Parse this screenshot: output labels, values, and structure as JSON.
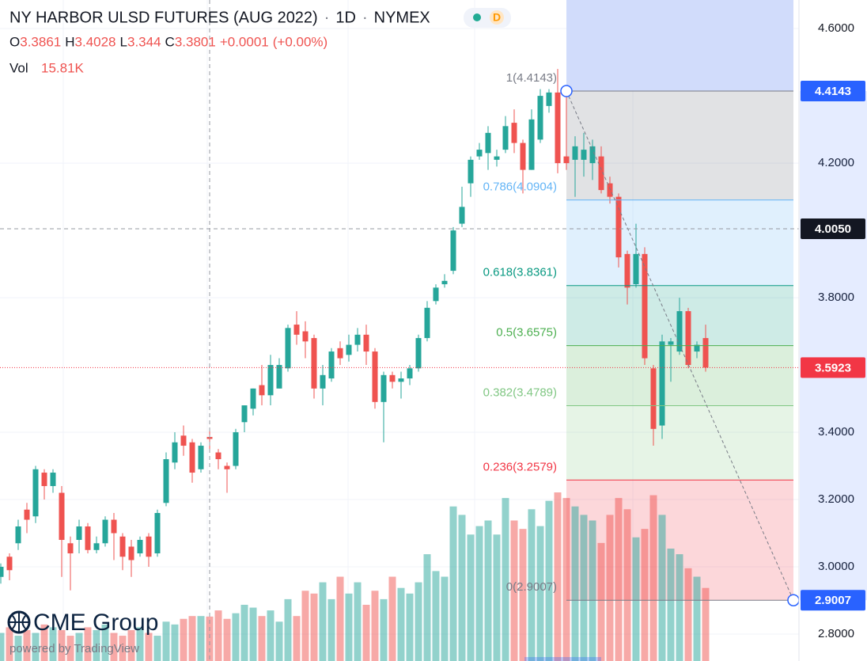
{
  "chart_data": {
    "type": "candlestick",
    "header": {
      "title": "NY HARBOR ULSD FUTURES (AUG 2022)",
      "interval": "1D",
      "exchange": "NYMEX",
      "badge": "D",
      "ohlc_keys": [
        "O",
        "H",
        "L",
        "C"
      ],
      "change": "+0.0001",
      "change_pct": "(+0.00%)",
      "vol_key": "Vol",
      "vol": "15.81K"
    },
    "up_color": "#26a69a",
    "down_color": "#ef5350",
    "ylim": [
      2.72,
      4.685
    ],
    "yticks": [
      {
        "value": 4.6,
        "label": "4.6000"
      },
      {
        "value": 4.2,
        "label": "4.2000"
      },
      {
        "value": 3.8,
        "label": "3.8000"
      },
      {
        "value": 3.4,
        "label": "3.4000"
      },
      {
        "value": 3.2,
        "label": "3.2000"
      },
      {
        "value": 3.0,
        "label": "3.0000"
      },
      {
        "value": 2.8,
        "label": "2.8000"
      }
    ],
    "grid": true,
    "open": [
      2.97,
      3.03,
      3.07,
      3.17,
      3.15,
      3.28,
      3.24,
      3.22,
      3.07,
      3.08,
      3.12,
      3.05,
      3.07,
      3.14,
      3.09,
      3.06,
      3.04,
      3.09,
      3.04,
      3.19,
      3.31,
      3.39,
      3.37,
      3.29,
      3.3861,
      3.34,
      3.3,
      3.3,
      3.43,
      3.47,
      3.54,
      3.51,
      3.53,
      3.59,
      3.72,
      3.7,
      3.68,
      3.53,
      3.56,
      3.65,
      3.63,
      3.66,
      3.69,
      3.64,
      3.49,
      3.57,
      3.55,
      3.56,
      3.59,
      3.68,
      3.79,
      3.84,
      3.88,
      4.02,
      4.14,
      4.22,
      4.23,
      4.21,
      4.24,
      4.32,
      4.26,
      4.18,
      4.27,
      4.37,
      4.41,
      4.22,
      4.21,
      4.21,
      4.2,
      4.22,
      4.14,
      4.1,
      3.93,
      3.84,
      3.93,
      3.59,
      3.42,
      3.66,
      3.64,
      3.76,
      3.64,
      3.68
    ],
    "high": [
      3.01,
      3.04,
      3.14,
      3.19,
      3.3,
      3.29,
      3.29,
      3.24,
      3.09,
      3.14,
      3.13,
      3.09,
      3.15,
      3.16,
      3.1,
      3.08,
      3.09,
      3.1,
      3.17,
      3.34,
      3.4,
      3.42,
      3.38,
      3.37,
      3.4028,
      3.35,
      3.31,
      3.41,
      3.48,
      3.53,
      3.6,
      3.63,
      3.62,
      3.72,
      3.76,
      3.73,
      3.69,
      3.6,
      3.65,
      3.67,
      3.69,
      3.71,
      3.72,
      3.65,
      3.58,
      3.58,
      3.58,
      3.6,
      3.69,
      3.79,
      3.84,
      3.87,
      4.01,
      4.13,
      4.22,
      4.26,
      4.31,
      4.24,
      4.34,
      4.36,
      4.27,
      4.36,
      4.42,
      4.42,
      4.48,
      4.4,
      4.28,
      4.29,
      4.27,
      4.25,
      4.16,
      4.11,
      3.94,
      4.02,
      3.95,
      3.6,
      3.69,
      3.68,
      3.8,
      3.77,
      3.67,
      3.72
    ],
    "low": [
      2.95,
      2.96,
      3.05,
      3.1,
      3.13,
      3.2,
      3.22,
      2.97,
      2.93,
      3.04,
      3.04,
      3.04,
      3.06,
      3.02,
      2.99,
      2.97,
      3.03,
      3.0,
      3.03,
      3.18,
      3.29,
      3.33,
      3.25,
      3.28,
      3.344,
      3.29,
      3.22,
      3.29,
      3.4,
      3.45,
      3.48,
      3.48,
      3.53,
      3.58,
      3.66,
      3.62,
      3.5,
      3.48,
      3.55,
      3.6,
      3.61,
      3.64,
      3.6,
      3.47,
      3.37,
      3.53,
      3.5,
      3.54,
      3.58,
      3.67,
      3.78,
      3.83,
      3.87,
      4.01,
      4.1,
      4.21,
      4.18,
      4.19,
      4.23,
      4.23,
      4.11,
      4.18,
      4.26,
      4.35,
      4.17,
      4.18,
      4.1,
      4.16,
      4.15,
      4.11,
      4.08,
      3.89,
      3.78,
      3.83,
      3.6,
      3.36,
      3.38,
      3.55,
      3.63,
      3.59,
      3.62,
      3.58
    ],
    "close": [
      3.0,
      2.99,
      3.12,
      3.14,
      3.29,
      3.24,
      3.28,
      3.08,
      3.04,
      3.12,
      3.05,
      3.07,
      3.14,
      3.1,
      3.03,
      3.02,
      3.08,
      3.03,
      3.16,
      3.32,
      3.37,
      3.36,
      3.28,
      3.36,
      3.3801,
      3.32,
      3.29,
      3.4,
      3.48,
      3.53,
      3.51,
      3.6,
      3.6,
      3.71,
      3.69,
      3.67,
      3.53,
      3.57,
      3.64,
      3.62,
      3.66,
      3.69,
      3.64,
      3.49,
      3.57,
      3.55,
      3.56,
      3.59,
      3.68,
      3.77,
      3.83,
      3.85,
      4.0,
      4.07,
      4.21,
      4.24,
      4.29,
      4.22,
      4.31,
      4.26,
      4.18,
      4.33,
      4.4,
      4.41,
      4.2,
      4.2,
      4.25,
      4.24,
      4.25,
      4.12,
      4.1,
      3.92,
      3.83,
      3.93,
      3.62,
      3.41,
      3.67,
      3.67,
      3.76,
      3.6,
      3.66,
      3.5923
    ],
    "volume": [
      10,
      12,
      9,
      11,
      10,
      13,
      12,
      11,
      9,
      10,
      12,
      11,
      13,
      10,
      9,
      11,
      12,
      10,
      9,
      14,
      13,
      15,
      16,
      16,
      15.81,
      18,
      15,
      17,
      20,
      19,
      16,
      18,
      14,
      22,
      16,
      25,
      24,
      28,
      22,
      30,
      24,
      28,
      20,
      25,
      22,
      30,
      26,
      24,
      28,
      38,
      32,
      30,
      55,
      52,
      45,
      48,
      50,
      45,
      58,
      50,
      47,
      54,
      48,
      57,
      60,
      58,
      55,
      52,
      50,
      42,
      52,
      58,
      54,
      44,
      47,
      59,
      52,
      40,
      38,
      33,
      30,
      26
    ],
    "vol_lim": [
      0,
      60
    ],
    "crosshair_price": {
      "value": 4.005,
      "label": "4.0050"
    },
    "last_price": 3.5923,
    "fib": [
      {
        "price": 4.4143,
        "label": "1(4.4143)",
        "color": "#787b86"
      },
      {
        "price": 4.0904,
        "label": "0.786(4.0904)",
        "color": "#64b5f6"
      },
      {
        "price": 3.8361,
        "label": "0.618(3.8361)",
        "color": "#089981"
      },
      {
        "price": 3.6575,
        "label": "0.5(3.6575)",
        "color": "#4caf50"
      },
      {
        "price": 3.4789,
        "label": "0.382(3.4789)",
        "color": "#81c784"
      },
      {
        "price": 3.2579,
        "label": "0.236(3.2579)",
        "color": "#f23645"
      },
      {
        "price": 2.9007,
        "label": "0(2.9007)",
        "color": "#787b86"
      }
    ],
    "logo": "CME Group",
    "powered_by": "powered by TradingView"
  }
}
